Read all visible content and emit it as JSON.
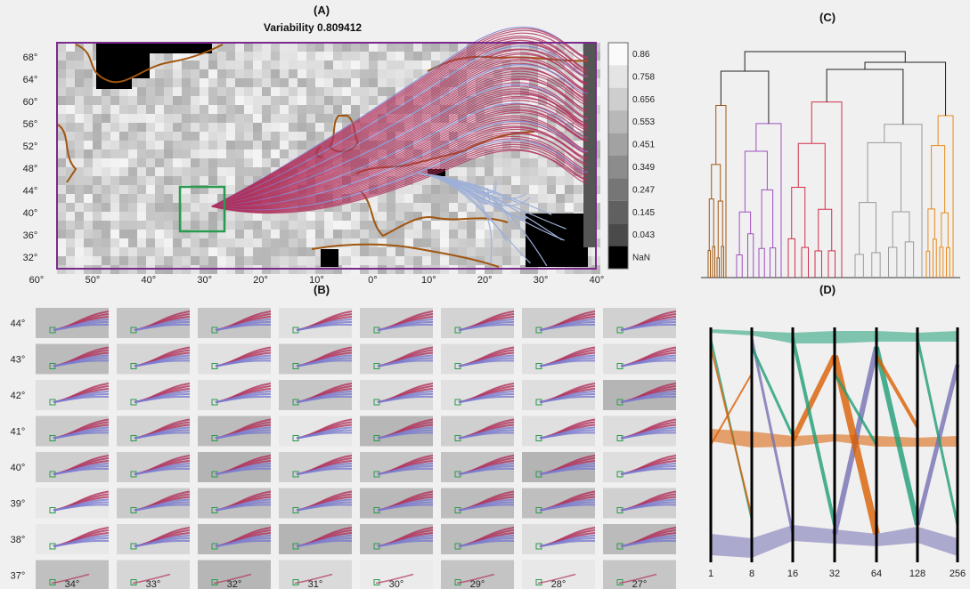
{
  "panel_a": {
    "label": "(A)",
    "title": "Variability 0.809412",
    "y_ticks": [
      "68°",
      "64°",
      "60°",
      "56°",
      "52°",
      "48°",
      "44°",
      "40°",
      "36°",
      "32°"
    ],
    "x_ticks": [
      "60°",
      "50°",
      "40°",
      "30°",
      "20°",
      "10°",
      "0°",
      "10°",
      "20°",
      "30°",
      "40°"
    ],
    "colorbar_ticks": [
      "0.86",
      "0.758",
      "0.656",
      "0.553",
      "0.451",
      "0.349",
      "0.247",
      "0.145",
      "0.043",
      "NaN"
    ]
  },
  "panel_b": {
    "label": "(B)",
    "row_labels": [
      "44°",
      "43°",
      "42°",
      "41°",
      "40°",
      "39°",
      "38°",
      "37°"
    ],
    "col_labels": [
      "34°",
      "33°",
      "32°",
      "31°",
      "30°",
      "29°",
      "28°",
      "27°"
    ]
  },
  "panel_c": {
    "label": "(C)"
  },
  "panel_d": {
    "label": "(D)",
    "axis_labels": [
      "1",
      "8",
      "16",
      "32",
      "64",
      "128",
      "256"
    ]
  },
  "colors": {
    "trajectory": "#b0305a",
    "trajectory_alt": "#7a7ad0",
    "coast": "#a0560f",
    "frame": "#7a2a8a",
    "box": "#2a9a50",
    "green": "#1f9e77",
    "orange": "#d95f02",
    "purple": "#7570b3"
  }
}
